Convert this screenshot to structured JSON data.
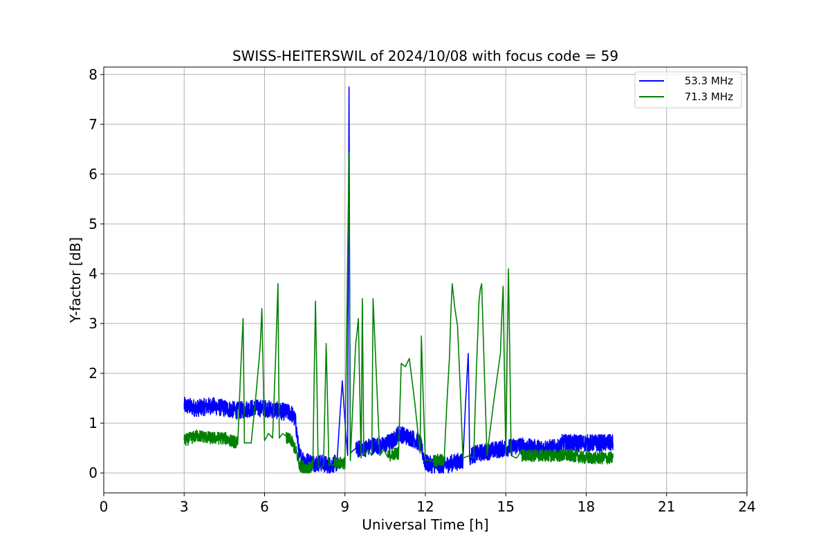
{
  "chart_data": {
    "type": "line",
    "title": "SWISS-HEITERSWIL of 2024/10/08 with focus code = 59",
    "xlabel": "Universal Time [h]",
    "ylabel": "Y-factor [dB]",
    "xlim": [
      0,
      24
    ],
    "ylim": [
      -0.4,
      8.15
    ],
    "xticks": [
      0,
      3,
      6,
      9,
      12,
      15,
      18,
      21,
      24
    ],
    "xtick_labels": [
      "0",
      "3",
      "6",
      "9",
      "12",
      "15",
      "18",
      "21",
      "24"
    ],
    "yticks": [
      0,
      1,
      2,
      3,
      4,
      5,
      6,
      7,
      8
    ],
    "ytick_labels": [
      "0",
      "1",
      "2",
      "3",
      "4",
      "5",
      "6",
      "7",
      "8"
    ],
    "grid": true,
    "legend_position": "top-right",
    "series": [
      {
        "name": "53.3 MHz",
        "color": "#0000ff",
        "x": [
          3.0,
          3.5,
          4.0,
          4.5,
          5.0,
          5.5,
          6.0,
          6.5,
          7.0,
          7.15,
          7.3,
          7.5,
          7.8,
          8.1,
          8.4,
          8.7,
          8.9,
          9.1,
          9.15,
          9.2,
          9.4,
          9.6,
          9.8,
          10.0,
          10.4,
          10.8,
          11.0,
          11.2,
          11.5,
          11.8,
          12.0,
          12.3,
          12.7,
          13.0,
          13.4,
          13.6,
          13.65,
          13.7,
          14.0,
          14.5,
          15.0,
          15.5,
          16.0,
          16.5,
          17.0,
          17.1,
          17.5,
          18.0,
          18.5,
          19.0
        ],
        "y": [
          1.35,
          1.3,
          1.35,
          1.3,
          1.25,
          1.3,
          1.3,
          1.25,
          1.2,
          1.05,
          0.35,
          0.25,
          0.2,
          0.2,
          0.15,
          0.2,
          1.85,
          0.35,
          7.75,
          0.4,
          0.45,
          0.5,
          0.5,
          0.55,
          0.55,
          0.65,
          0.8,
          0.75,
          0.7,
          0.6,
          0.2,
          0.15,
          0.15,
          0.2,
          0.25,
          2.4,
          0.3,
          0.35,
          0.4,
          0.45,
          0.5,
          0.55,
          0.5,
          0.5,
          0.5,
          0.6,
          0.6,
          0.6,
          0.6,
          0.6
        ],
        "noise_amplitude": 0.35
      },
      {
        "name": "71.3 MHz",
        "color": "#008000",
        "x": [
          3.0,
          3.5,
          4.0,
          4.5,
          5.0,
          5.2,
          5.25,
          5.5,
          5.8,
          5.9,
          6.0,
          6.3,
          6.5,
          6.55,
          6.8,
          7.0,
          7.2,
          7.3,
          7.6,
          7.8,
          7.9,
          8.0,
          8.2,
          8.3,
          8.4,
          8.6,
          8.8,
          9.0,
          9.15,
          9.2,
          9.4,
          9.5,
          9.6,
          9.65,
          9.7,
          10.0,
          10.05,
          10.3,
          10.6,
          11.0,
          11.1,
          11.4,
          11.8,
          11.85,
          12.0,
          12.3,
          12.7,
          12.9,
          13.0,
          13.2,
          13.4,
          13.8,
          14.0,
          14.1,
          14.3,
          14.8,
          14.9,
          15.0,
          15.1,
          15.2,
          15.6,
          16.0,
          16.5,
          17.0,
          17.5,
          18.0,
          18.5,
          19.0
        ],
        "y": [
          0.65,
          0.75,
          0.7,
          0.7,
          0.6,
          3.1,
          0.6,
          0.6,
          2.3,
          3.3,
          0.65,
          0.7,
          3.8,
          0.7,
          0.7,
          0.65,
          0.4,
          0.15,
          0.1,
          0.12,
          3.45,
          0.12,
          0.15,
          2.6,
          0.15,
          0.2,
          0.2,
          0.2,
          6.45,
          0.25,
          2.6,
          3.1,
          0.3,
          3.5,
          0.35,
          0.35,
          3.5,
          0.35,
          0.35,
          0.4,
          2.2,
          2.3,
          0.4,
          2.75,
          0.25,
          0.25,
          0.25,
          2.35,
          3.8,
          2.95,
          0.3,
          0.3,
          3.45,
          3.8,
          0.35,
          2.4,
          3.75,
          0.35,
          4.1,
          0.35,
          0.35,
          0.35,
          0.35,
          0.35,
          0.35,
          0.3,
          0.3,
          0.3
        ],
        "noise_amplitude": 0.25
      }
    ]
  }
}
